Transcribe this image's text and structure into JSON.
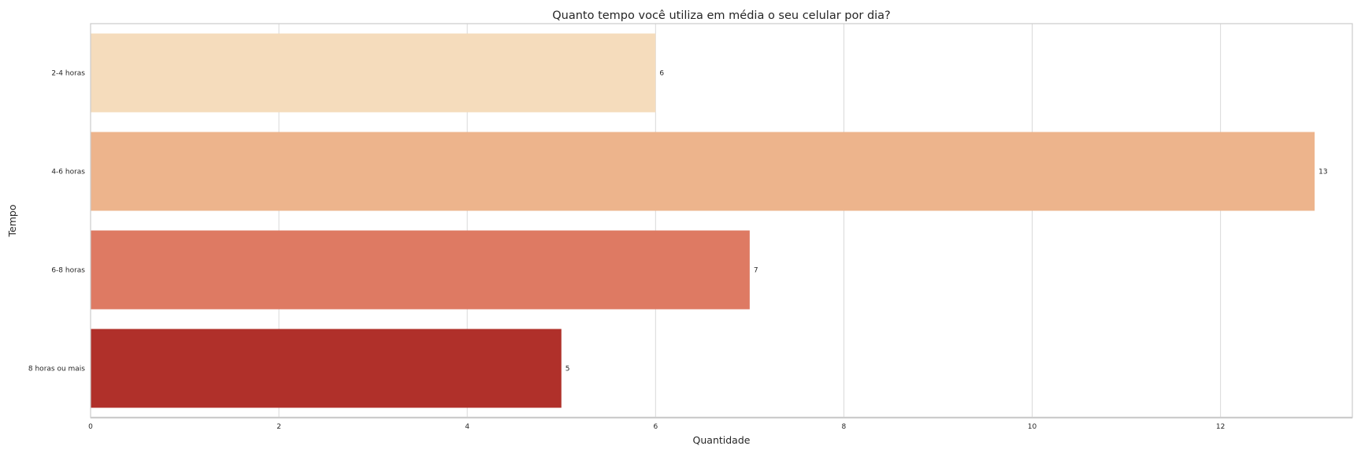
{
  "chart_data": {
    "type": "bar",
    "orientation": "horizontal",
    "title": "Quanto tempo você utiliza em média o seu celular por dia?",
    "xlabel": "Quantidade",
    "ylabel": "Tempo",
    "categories": [
      "2-4 horas",
      "4-6 horas",
      "6-8 horas",
      "8 horas ou mais"
    ],
    "values": [
      6,
      13,
      7,
      5
    ],
    "data_labels": [
      "6",
      "13",
      "7",
      "5"
    ],
    "xlim": [
      0,
      13.4
    ],
    "xticks": [
      0,
      2,
      4,
      6,
      8,
      10,
      12
    ],
    "xtick_labels": [
      "0",
      "2",
      "4",
      "6",
      "8",
      "10",
      "12"
    ],
    "grid": true,
    "colors": [
      "#f5dcbc",
      "#edb48c",
      "#de7a63",
      "#b0302a"
    ],
    "grid_color": "#d9d9d9",
    "frame_color": "#cccccc"
  }
}
